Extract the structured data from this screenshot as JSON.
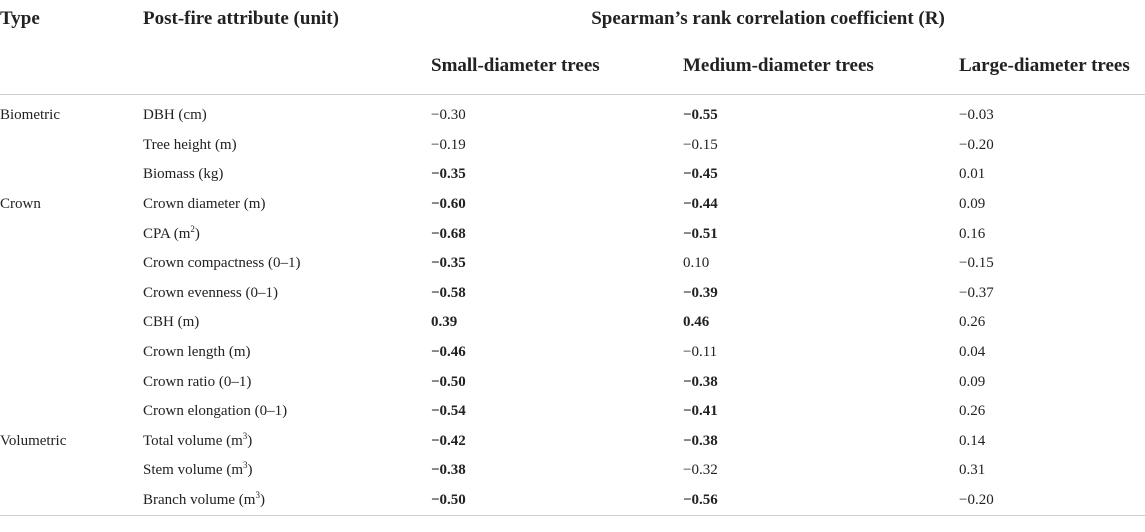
{
  "headers": {
    "type": "Type",
    "attribute": "Post-fire attribute (unit)",
    "coef": "Spearman’s rank correlation coefficient (R)",
    "small": "Small-diameter trees",
    "medium": "Medium-diameter trees",
    "large": "Large-diameter trees"
  },
  "rows": [
    {
      "type": "Biometric",
      "attr": "DBH (cm)",
      "sup": "",
      "small": "−0.30",
      "small_bold": false,
      "medium": "−0.55",
      "medium_bold": true,
      "large": "−0.03",
      "large_bold": false
    },
    {
      "type": "",
      "attr": "Tree height (m)",
      "sup": "",
      "small": "−0.19",
      "small_bold": false,
      "medium": "−0.15",
      "medium_bold": false,
      "large": "−0.20",
      "large_bold": false
    },
    {
      "type": "",
      "attr": "Biomass (kg)",
      "sup": "",
      "small": "−0.35",
      "small_bold": true,
      "medium": "−0.45",
      "medium_bold": true,
      "large": "0.01",
      "large_bold": false
    },
    {
      "type": "Crown",
      "attr": "Crown diameter (m)",
      "sup": "",
      "small": "−0.60",
      "small_bold": true,
      "medium": "−0.44",
      "medium_bold": true,
      "large": "0.09",
      "large_bold": false
    },
    {
      "type": "",
      "attr": "CPA (m",
      "sup": "2",
      "attr_tail": ")",
      "small": "−0.68",
      "small_bold": true,
      "medium": "−0.51",
      "medium_bold": true,
      "large": "0.16",
      "large_bold": false
    },
    {
      "type": "",
      "attr": "Crown compactness (0–1)",
      "sup": "",
      "small": "−0.35",
      "small_bold": true,
      "medium": "0.10",
      "medium_bold": false,
      "large": "−0.15",
      "large_bold": false
    },
    {
      "type": "",
      "attr": "Crown evenness (0–1)",
      "sup": "",
      "small": "−0.58",
      "small_bold": true,
      "medium": "−0.39",
      "medium_bold": true,
      "large": "−0.37",
      "large_bold": false
    },
    {
      "type": "",
      "attr": "CBH (m)",
      "sup": "",
      "small": "0.39",
      "small_bold": true,
      "medium": "0.46",
      "medium_bold": true,
      "large": "0.26",
      "large_bold": false
    },
    {
      "type": "",
      "attr": "Crown length (m)",
      "sup": "",
      "small": "−0.46",
      "small_bold": true,
      "medium": "−0.11",
      "medium_bold": false,
      "large": "0.04",
      "large_bold": false
    },
    {
      "type": "",
      "attr": "Crown ratio (0–1)",
      "sup": "",
      "small": "−0.50",
      "small_bold": true,
      "medium": "−0.38",
      "medium_bold": true,
      "large": "0.09",
      "large_bold": false
    },
    {
      "type": "",
      "attr": "Crown elongation (0–1)",
      "sup": "",
      "small": "−0.54",
      "small_bold": true,
      "medium": "−0.41",
      "medium_bold": true,
      "large": "0.26",
      "large_bold": false
    },
    {
      "type": "Volumetric",
      "attr": "Total volume (m",
      "sup": "3",
      "attr_tail": ")",
      "small": "−0.42",
      "small_bold": true,
      "medium": "−0.38",
      "medium_bold": true,
      "large": "0.14",
      "large_bold": false
    },
    {
      "type": "",
      "attr": "Stem volume (m",
      "sup": "3",
      "attr_tail": ")",
      "small": "−0.38",
      "small_bold": true,
      "medium": "−0.32",
      "medium_bold": false,
      "large": "0.31",
      "large_bold": false
    },
    {
      "type": "",
      "attr": "Branch volume (m",
      "sup": "3",
      "attr_tail": ")",
      "small": "−0.50",
      "small_bold": true,
      "medium": "−0.56",
      "medium_bold": true,
      "large": "−0.20",
      "large_bold": false
    }
  ]
}
